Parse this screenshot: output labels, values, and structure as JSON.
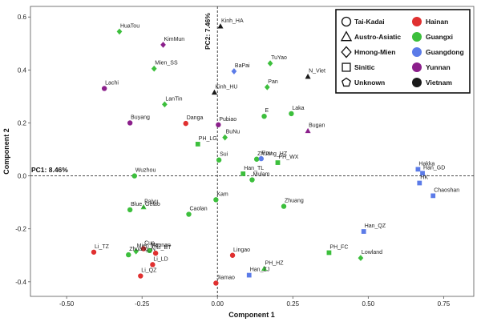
{
  "chart_data": {
    "type": "scatter",
    "xlabel": "Component 1",
    "ylabel": "Component 2",
    "xlim": [
      -0.62,
      0.85
    ],
    "ylim": [
      -0.455,
      0.64
    ],
    "xticks": [
      -0.5,
      -0.25,
      0.0,
      0.25,
      0.5,
      0.75
    ],
    "xtick_labels": [
      "-0.50",
      "-0.25",
      "0.00",
      "0.25",
      "0.50",
      "0.75"
    ],
    "yticks": [
      -0.4,
      -0.2,
      0.0,
      0.2,
      0.4,
      0.6
    ],
    "ytick_labels": [
      "-0.4",
      "-0.2",
      "0.0",
      "0.2",
      "0.4",
      "0.6"
    ],
    "pc1_label": "PC1: 8.46%",
    "pc2_label": "PC2: 7.46%",
    "legend": {
      "shapes": [
        {
          "shape": "circle",
          "label": "Tai-Kadai"
        },
        {
          "shape": "triangle",
          "label": "Austro-Asiatic"
        },
        {
          "shape": "diamond",
          "label": "Hmong-Mien"
        },
        {
          "shape": "square",
          "label": "Sinitic"
        },
        {
          "shape": "pentagon",
          "label": "Unknown"
        }
      ],
      "regions": [
        {
          "label": "Hainan",
          "color": "#e03030"
        },
        {
          "label": "Guangxi",
          "color": "#3cbf3c"
        },
        {
          "label": "Guangdong",
          "color": "#5b7be8"
        },
        {
          "label": "Yunnan",
          "color": "#8b1f8b"
        },
        {
          "label": "Vietnam",
          "color": "#1a1a1a"
        }
      ]
    },
    "points": [
      {
        "label": "HuaTou",
        "x": -0.325,
        "y": 0.545,
        "shape": "diamond",
        "region": "Guangxi"
      },
      {
        "label": "KimMun",
        "x": -0.18,
        "y": 0.495,
        "shape": "diamond",
        "region": "Yunnan"
      },
      {
        "label": "Kinh_HA",
        "x": 0.01,
        "y": 0.565,
        "shape": "triangle",
        "region": "Vietnam"
      },
      {
        "label": "Mien_SS",
        "x": -0.21,
        "y": 0.405,
        "shape": "diamond",
        "region": "Guangxi"
      },
      {
        "label": "BaPai",
        "x": 0.055,
        "y": 0.395,
        "shape": "diamond",
        "region": "Guangdong"
      },
      {
        "label": "TuYao",
        "x": 0.175,
        "y": 0.425,
        "shape": "diamond",
        "region": "Guangxi"
      },
      {
        "label": "N_Viet",
        "x": 0.3,
        "y": 0.375,
        "shape": "triangle",
        "region": "Vietnam"
      },
      {
        "label": "Lachi",
        "x": -0.375,
        "y": 0.33,
        "shape": "circle",
        "region": "Yunnan"
      },
      {
        "label": "Pan",
        "x": 0.165,
        "y": 0.335,
        "shape": "diamond",
        "region": "Guangxi"
      },
      {
        "label": "Kinh_HU",
        "x": -0.01,
        "y": 0.315,
        "shape": "triangle",
        "region": "Vietnam"
      },
      {
        "label": "LanTin",
        "x": -0.175,
        "y": 0.27,
        "shape": "diamond",
        "region": "Guangxi"
      },
      {
        "label": "E",
        "x": 0.155,
        "y": 0.225,
        "shape": "circle",
        "region": "Guangxi"
      },
      {
        "label": "Laka",
        "x": 0.245,
        "y": 0.235,
        "shape": "circle",
        "region": "Guangxi"
      },
      {
        "label": "Buyang",
        "x": -0.29,
        "y": 0.2,
        "shape": "circle",
        "region": "Yunnan"
      },
      {
        "label": "Danga",
        "x": -0.105,
        "y": 0.198,
        "shape": "circle",
        "region": "Hainan"
      },
      {
        "label": "Pubiao",
        "x": 0.003,
        "y": 0.193,
        "shape": "circle",
        "region": "Yunnan"
      },
      {
        "label": "Bugan",
        "x": 0.3,
        "y": 0.17,
        "shape": "triangle",
        "region": "Yunnan"
      },
      {
        "label": "BuNu",
        "x": 0.025,
        "y": 0.145,
        "shape": "diamond",
        "region": "Guangxi"
      },
      {
        "label": "PH_LG",
        "x": -0.065,
        "y": 0.12,
        "shape": "square",
        "region": "Guangxi"
      },
      {
        "label": "Sui",
        "x": 0.005,
        "y": 0.06,
        "shape": "circle",
        "region": "Guangxi"
      },
      {
        "label": "Zhuang_HZ",
        "x": 0.13,
        "y": 0.063,
        "shape": "circle",
        "region": "Guangxi"
      },
      {
        "label": "PH_WX",
        "x": 0.2,
        "y": 0.05,
        "shape": "square",
        "region": "Guangxi"
      },
      {
        "label": "Pou",
        "x": 0.145,
        "y": 0.065,
        "shape": "circle",
        "region": "Guangdong"
      },
      {
        "label": "Han_TL",
        "x": 0.085,
        "y": 0.008,
        "shape": "square",
        "region": "Guangxi"
      },
      {
        "label": "Mulam",
        "x": 0.115,
        "y": -0.015,
        "shape": "circle",
        "region": "Guangxi"
      },
      {
        "label": "Wuzhou",
        "x": -0.275,
        "y": 0.0,
        "shape": "circle",
        "region": "Guangxi"
      },
      {
        "label": "Hakka",
        "x": 0.665,
        "y": 0.025,
        "shape": "square",
        "region": "Guangdong"
      },
      {
        "label": "Han_GD",
        "x": 0.68,
        "y": 0.01,
        "shape": "square",
        "region": "Guangdong"
      },
      {
        "label": "HK",
        "x": 0.67,
        "y": -0.027,
        "shape": "square",
        "region": "Guangdong"
      },
      {
        "label": "Chaoshan",
        "x": 0.715,
        "y": -0.075,
        "shape": "square",
        "region": "Guangdong"
      },
      {
        "label": "Kam",
        "x": -0.005,
        "y": -0.09,
        "shape": "circle",
        "region": "Guangxi"
      },
      {
        "label": "Paiyu",
        "x": -0.245,
        "y": -0.118,
        "shape": "triangle",
        "region": "Guangxi"
      },
      {
        "label": "Blue_Gelao",
        "x": -0.29,
        "y": -0.128,
        "shape": "circle",
        "region": "Guangxi"
      },
      {
        "label": "Caolan",
        "x": -0.095,
        "y": -0.145,
        "shape": "circle",
        "region": "Guangxi"
      },
      {
        "label": "Zhuang",
        "x": 0.22,
        "y": -0.115,
        "shape": "circle",
        "region": "Guangxi"
      },
      {
        "label": "Han_QZ",
        "x": 0.485,
        "y": -0.21,
        "shape": "square",
        "region": "Guangdong"
      },
      {
        "label": "Cun",
        "x": -0.245,
        "y": -0.275,
        "shape": "circle",
        "region": "Hainan"
      },
      {
        "label": "Mien_FC",
        "x": -0.27,
        "y": -0.285,
        "shape": "diamond",
        "region": "Guangxi"
      },
      {
        "label": "Maonan",
        "x": -0.225,
        "y": -0.282,
        "shape": "circle",
        "region": "Guangxi"
      },
      {
        "label": "Li_TZ",
        "x": -0.41,
        "y": -0.288,
        "shape": "circle",
        "region": "Hainan"
      },
      {
        "label": "Li_BT",
        "x": -0.205,
        "y": -0.292,
        "shape": "circle",
        "region": "Hainan"
      },
      {
        "label": "Zhuang_N",
        "x": -0.295,
        "y": -0.298,
        "shape": "circle",
        "region": "Guangxi"
      },
      {
        "label": "Li_LD",
        "x": -0.215,
        "y": -0.335,
        "shape": "circle",
        "region": "Hainan"
      },
      {
        "label": "Li_QZ",
        "x": -0.255,
        "y": -0.378,
        "shape": "circle",
        "region": "Hainan"
      },
      {
        "label": "Lingao",
        "x": 0.05,
        "y": -0.3,
        "shape": "circle",
        "region": "Hainan"
      },
      {
        "label": "PH_FC",
        "x": 0.37,
        "y": -0.29,
        "shape": "square",
        "region": "Guangxi"
      },
      {
        "label": "Lowland",
        "x": 0.475,
        "y": -0.31,
        "shape": "diamond",
        "region": "Guangxi"
      },
      {
        "label": "PH_HZ",
        "x": 0.155,
        "y": -0.35,
        "shape": "triangle",
        "region": "Guangxi"
      },
      {
        "label": "Han_ZJ",
        "x": 0.105,
        "y": -0.375,
        "shape": "square",
        "region": "Guangdong"
      },
      {
        "label": "Jiamao",
        "x": -0.005,
        "y": -0.405,
        "shape": "circle",
        "region": "Hainan"
      }
    ]
  }
}
